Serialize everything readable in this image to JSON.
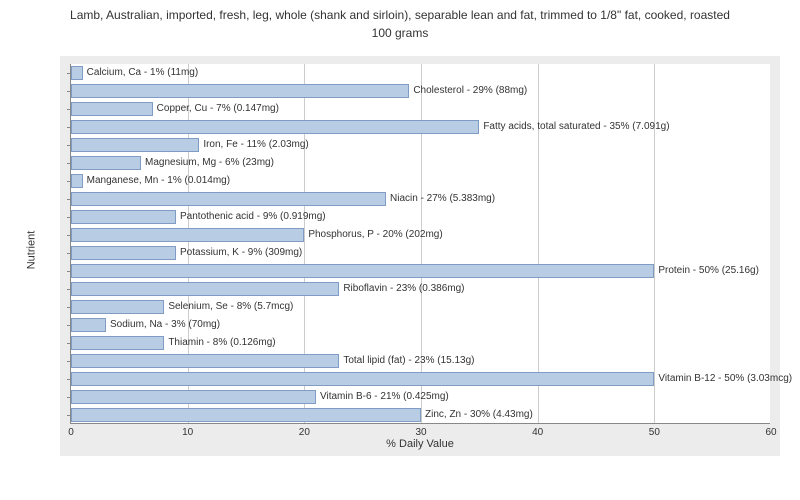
{
  "chart": {
    "type": "bar-horizontal",
    "title": "Lamb, Australian, imported, fresh, leg, whole (shank and sirloin), separable lean and fat, trimmed to 1/8\" fat, cooked, roasted",
    "subtitle": "100 grams",
    "y_axis_label": "Nutrient",
    "x_axis_label": "% Daily Value",
    "xlim": [
      0,
      60
    ],
    "xtick_step": 10,
    "xticks": [
      "0",
      "10",
      "20",
      "30",
      "40",
      "50",
      "60"
    ],
    "bar_color": "#b8cce4",
    "bar_border_color": "#7f9cc5",
    "background_color": "#ececec",
    "plot_background": "#ffffff",
    "grid_color": "#cccccc",
    "title_fontsize": 12,
    "label_fontsize": 11,
    "tick_fontsize": 10,
    "bar_label_fontsize": 10,
    "nutrients": [
      {
        "label": "Calcium, Ca - 1% (11mg)",
        "value": 1
      },
      {
        "label": "Cholesterol - 29% (88mg)",
        "value": 29
      },
      {
        "label": "Copper, Cu - 7% (0.147mg)",
        "value": 7
      },
      {
        "label": "Fatty acids, total saturated - 35% (7.091g)",
        "value": 35
      },
      {
        "label": "Iron, Fe - 11% (2.03mg)",
        "value": 11
      },
      {
        "label": "Magnesium, Mg - 6% (23mg)",
        "value": 6
      },
      {
        "label": "Manganese, Mn - 1% (0.014mg)",
        "value": 1
      },
      {
        "label": "Niacin - 27% (5.383mg)",
        "value": 27
      },
      {
        "label": "Pantothenic acid - 9% (0.919mg)",
        "value": 9
      },
      {
        "label": "Phosphorus, P - 20% (202mg)",
        "value": 20
      },
      {
        "label": "Potassium, K - 9% (309mg)",
        "value": 9
      },
      {
        "label": "Protein - 50% (25.16g)",
        "value": 50
      },
      {
        "label": "Riboflavin - 23% (0.386mg)",
        "value": 23
      },
      {
        "label": "Selenium, Se - 8% (5.7mcg)",
        "value": 8
      },
      {
        "label": "Sodium, Na - 3% (70mg)",
        "value": 3
      },
      {
        "label": "Thiamin - 8% (0.126mg)",
        "value": 8
      },
      {
        "label": "Total lipid (fat) - 23% (15.13g)",
        "value": 23
      },
      {
        "label": "Vitamin B-12 - 50% (3.03mcg)",
        "value": 50
      },
      {
        "label": "Vitamin B-6 - 21% (0.425mg)",
        "value": 21
      },
      {
        "label": "Zinc, Zn - 30% (4.43mg)",
        "value": 30
      }
    ]
  }
}
